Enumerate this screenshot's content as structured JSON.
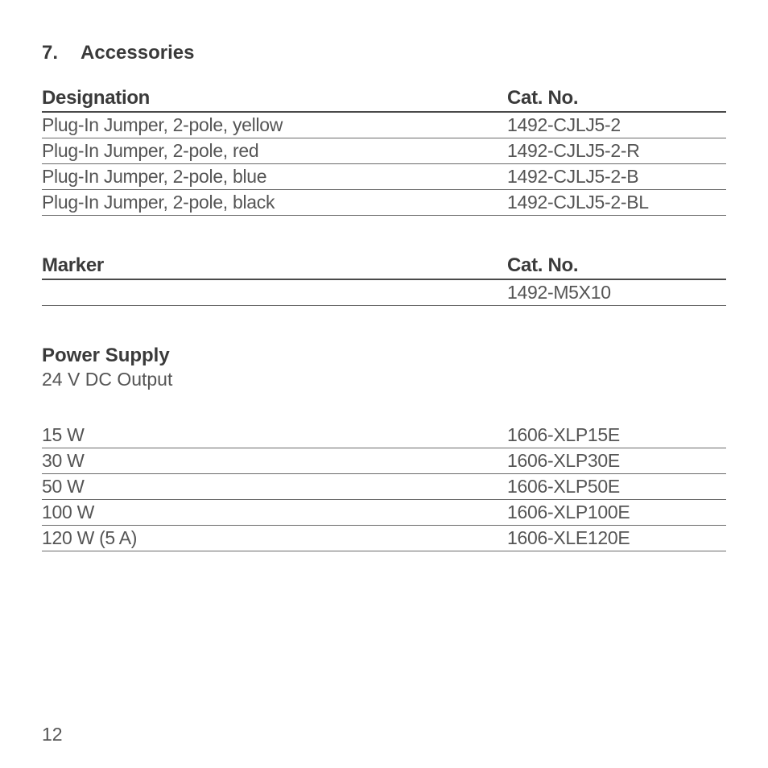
{
  "section": {
    "number": "7.",
    "title": "Accessories"
  },
  "designation_table": {
    "headers": {
      "left": "Designation",
      "right": "Cat. No."
    },
    "rows": [
      {
        "left": "Plug-In Jumper, 2-pole, yellow",
        "right": "1492-CJLJ5-2"
      },
      {
        "left": "Plug-In Jumper, 2-pole, red",
        "right": "1492-CJLJ5-2-R"
      },
      {
        "left": "Plug-In Jumper, 2-pole, blue",
        "right": "1492-CJLJ5-2-B"
      },
      {
        "left": "Plug-In Jumper, 2-pole, black",
        "right": "1492-CJLJ5-2-BL"
      }
    ]
  },
  "marker_table": {
    "headers": {
      "left": "Marker",
      "right": "Cat. No."
    },
    "rows": [
      {
        "left": "",
        "right": "1492-M5X10"
      }
    ]
  },
  "power_supply": {
    "heading": "Power Supply",
    "subheading": "24 V DC Output",
    "rows": [
      {
        "left": "15 W",
        "right": "1606-XLP15E"
      },
      {
        "left": "30 W",
        "right": "1606-XLP30E"
      },
      {
        "left": "50 W",
        "right": "1606-XLP50E"
      },
      {
        "left": "100 W",
        "right": "1606-XLP100E"
      },
      {
        "left": "120 W (5 A)",
        "right": "1606-XLE120E"
      }
    ]
  },
  "page_number": "12"
}
